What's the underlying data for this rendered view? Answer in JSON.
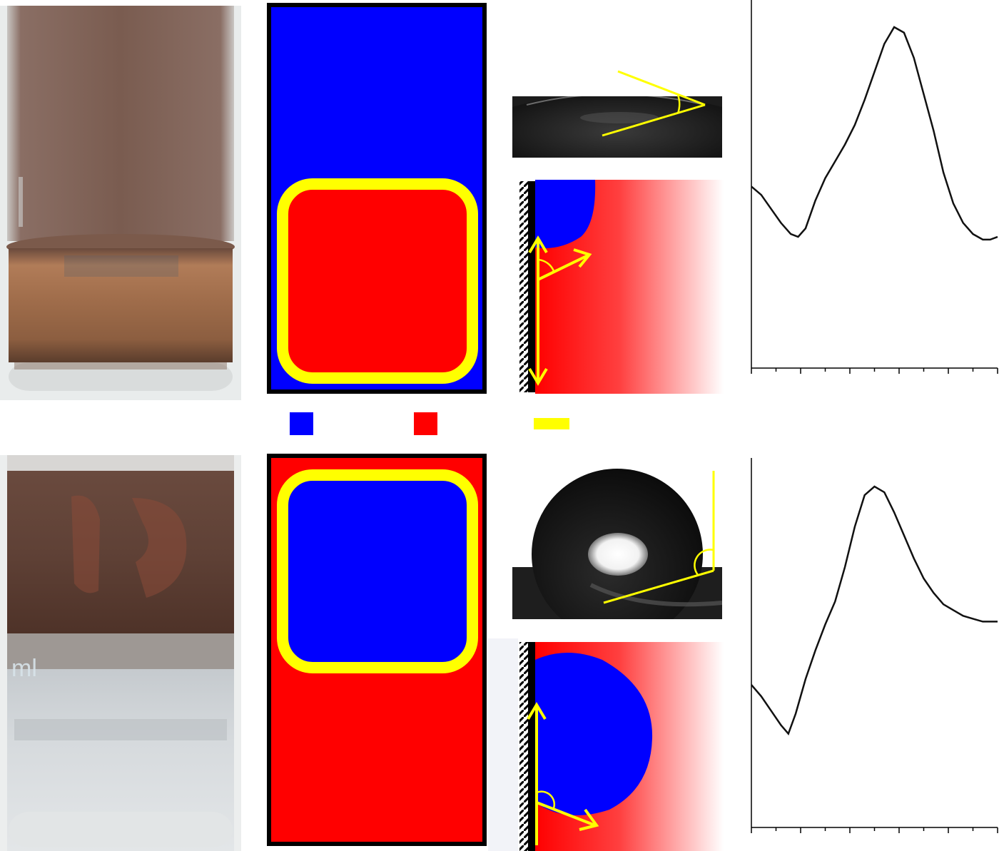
{
  "figure": {
    "colors": {
      "blue": "#0000ff",
      "red": "#ff0000",
      "yellow": "#ffff00",
      "black": "#111111",
      "vial_oil_brown": "#6e4e42",
      "copper_layer": "#9a6a48",
      "glass_bg": "#e8ebec"
    },
    "legend": {
      "items": [
        {
          "name": "blue-swatch",
          "color": "#0000ff",
          "shape": "square"
        },
        {
          "name": "red-swatch",
          "color": "#ff0000",
          "shape": "square"
        },
        {
          "name": "yellow-swatch",
          "color": "#ffff00",
          "shape": "bar"
        }
      ]
    },
    "top_row": {
      "schematic": {
        "outer_fill": "blue",
        "inner_fill": "red",
        "shell": "yellow"
      },
      "droplet_photo": {
        "contact_angle": "acute"
      },
      "wetting_diagram": {
        "droplet": "blue",
        "medium": "red"
      }
    },
    "bottom_row": {
      "vial_label_fragment": "ml",
      "schematic": {
        "outer_fill": "red",
        "inner_fill": "blue",
        "shell": "yellow"
      },
      "droplet_photo": {
        "contact_angle": "obtuse"
      },
      "wetting_diagram": {
        "droplet": "blue",
        "medium": "red"
      }
    }
  },
  "chart_data": [
    {
      "type": "line",
      "title": "",
      "xlabel": "",
      "ylabel": "",
      "x_ticks": 10,
      "series": [
        {
          "x": [
            0,
            0.04,
            0.08,
            0.12,
            0.16,
            0.19,
            0.22,
            0.26,
            0.3,
            0.34,
            0.38,
            0.42,
            0.46,
            0.5,
            0.54,
            0.58,
            0.62,
            0.66,
            0.7,
            0.74,
            0.78,
            0.82,
            0.86,
            0.9,
            0.94,
            0.97,
            1.0
          ],
          "y": [
            0.43,
            0.4,
            0.35,
            0.3,
            0.26,
            0.25,
            0.28,
            0.38,
            0.46,
            0.52,
            0.58,
            0.65,
            0.74,
            0.84,
            0.94,
            1.0,
            0.98,
            0.89,
            0.76,
            0.63,
            0.48,
            0.37,
            0.3,
            0.26,
            0.24,
            0.24,
            0.25
          ]
        }
      ]
    },
    {
      "type": "line",
      "title": "",
      "xlabel": "",
      "ylabel": "",
      "x_ticks": 10,
      "series": [
        {
          "x": [
            0,
            0.04,
            0.08,
            0.12,
            0.15,
            0.18,
            0.22,
            0.26,
            0.3,
            0.34,
            0.38,
            0.42,
            0.46,
            0.5,
            0.54,
            0.58,
            0.62,
            0.66,
            0.7,
            0.74,
            0.78,
            0.82,
            0.86,
            0.9,
            0.94,
            0.97,
            1.0
          ],
          "y": [
            0.31,
            0.27,
            0.22,
            0.17,
            0.14,
            0.21,
            0.33,
            0.43,
            0.52,
            0.6,
            0.72,
            0.86,
            0.97,
            1.0,
            0.98,
            0.91,
            0.83,
            0.75,
            0.68,
            0.63,
            0.59,
            0.57,
            0.55,
            0.54,
            0.53,
            0.53,
            0.53
          ]
        }
      ]
    }
  ]
}
